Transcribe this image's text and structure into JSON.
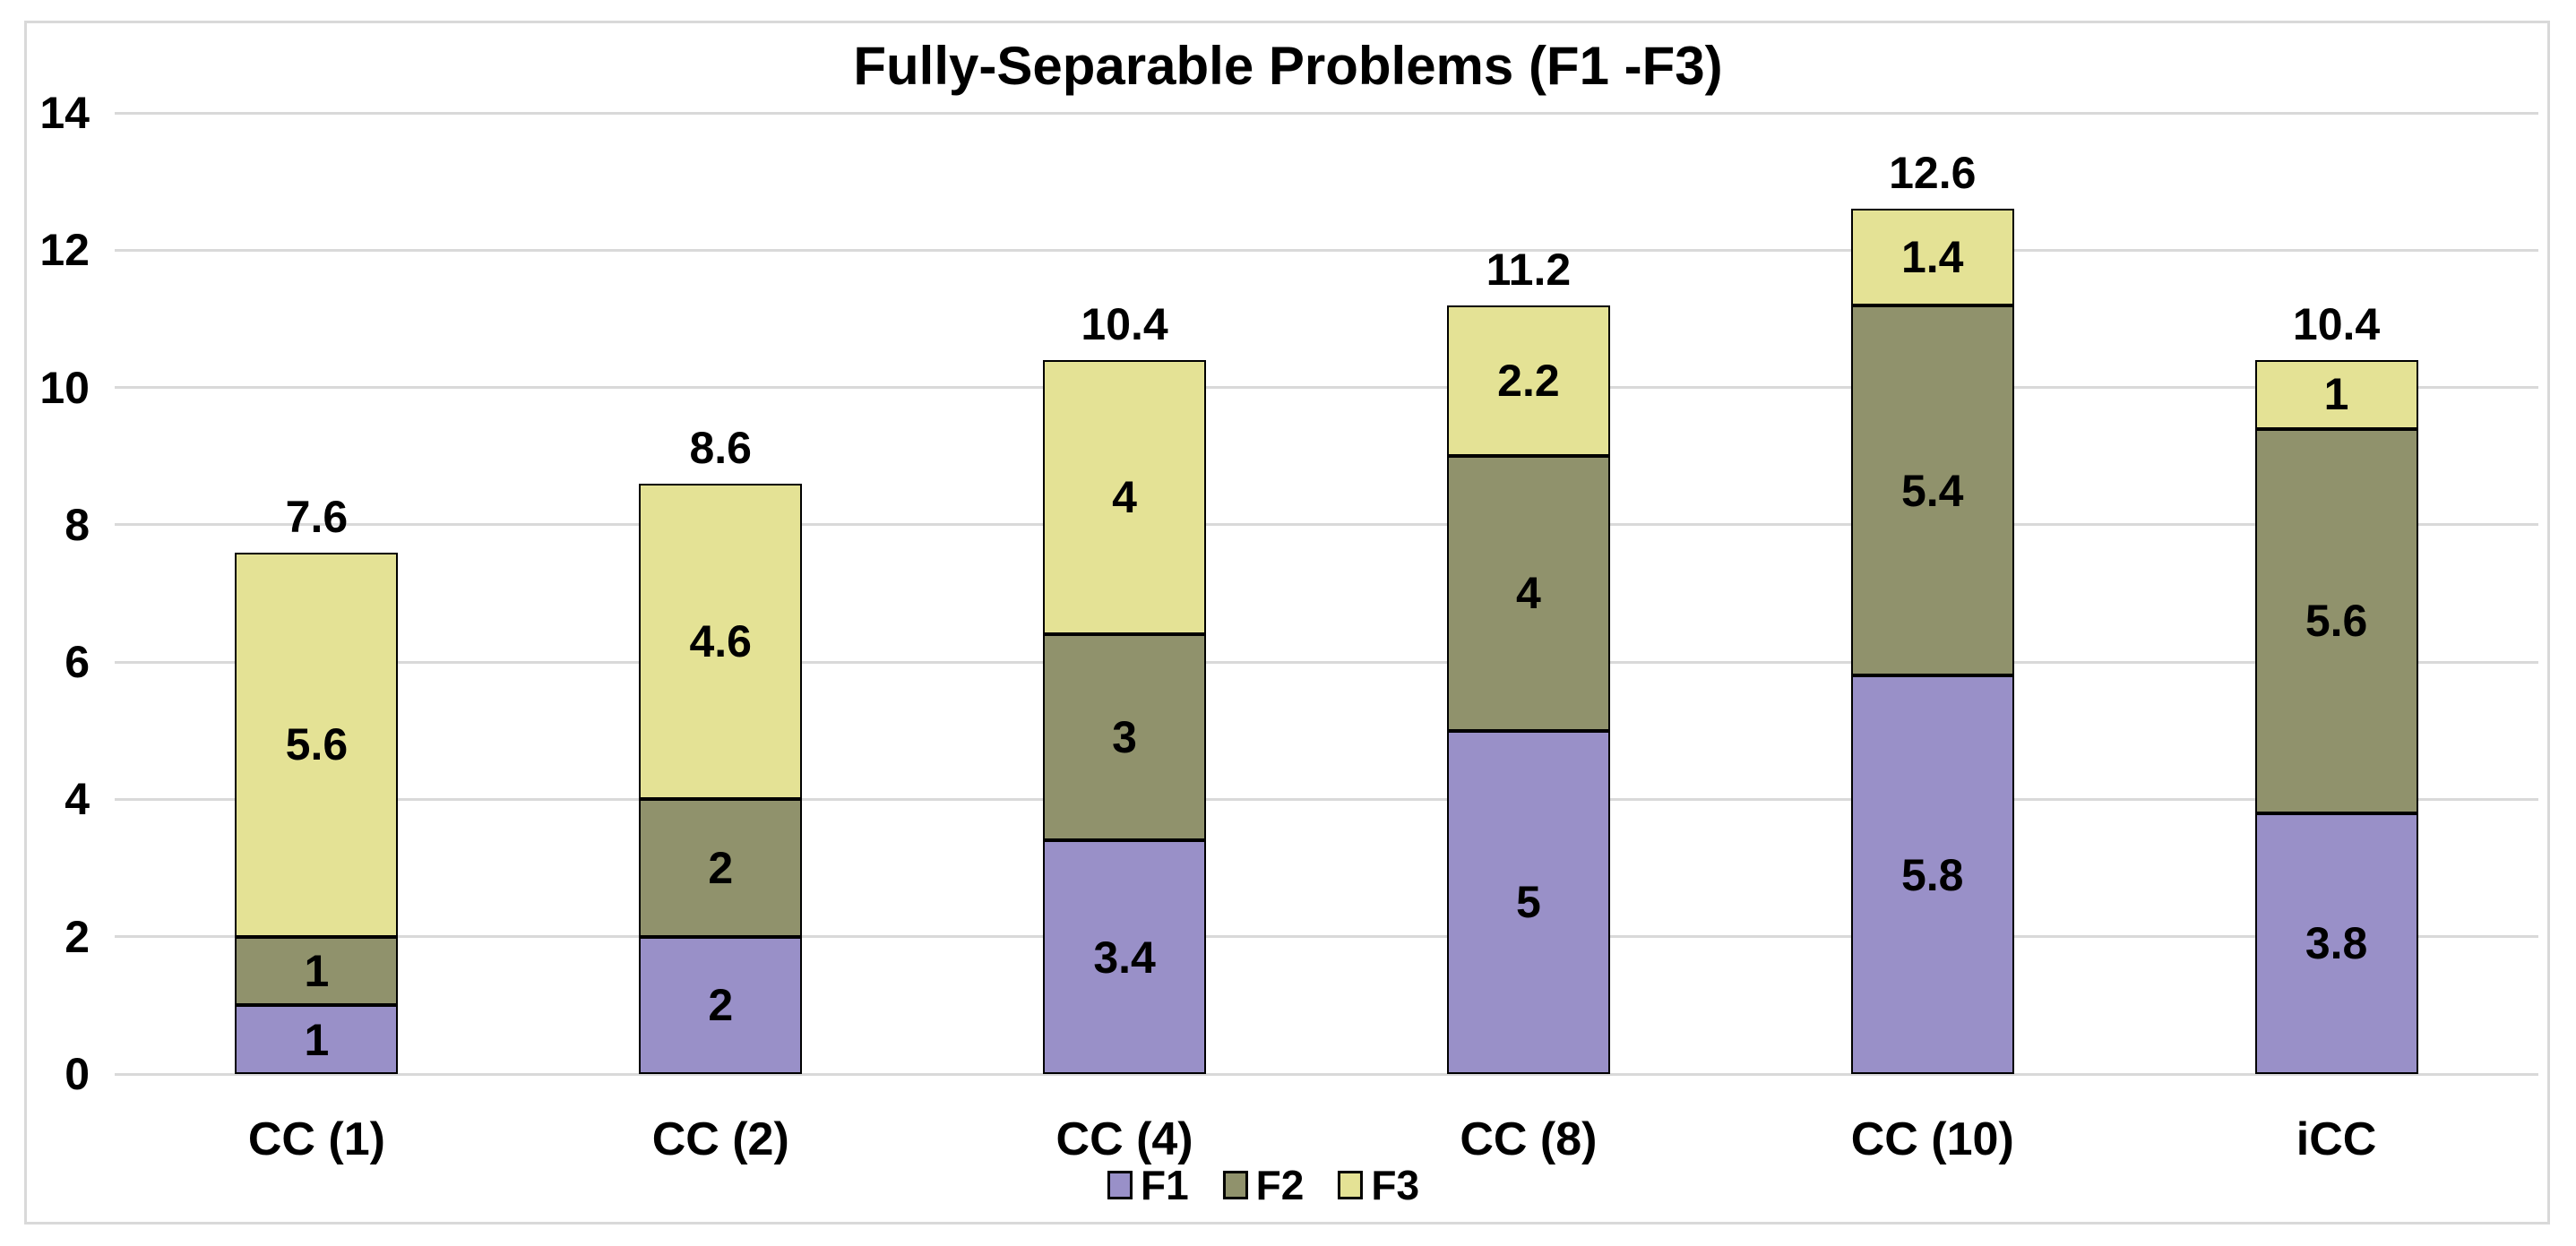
{
  "chart_data": {
    "type": "bar",
    "stacked": true,
    "title": "Fully-Separable Problems (F1 -F3)",
    "categories": [
      "CC (1)",
      "CC (2)",
      "CC (4)",
      "CC (8)",
      "CC (10)",
      "iCC"
    ],
    "series": [
      {
        "name": "F1",
        "color": "#9990C8",
        "values": [
          1,
          2,
          3.4,
          5,
          5.8,
          3.8
        ]
      },
      {
        "name": "F2",
        "color": "#90926C",
        "values": [
          1,
          2,
          3,
          4,
          5.4,
          5.6
        ]
      },
      {
        "name": "F3",
        "color": "#E4E295",
        "values": [
          5.6,
          4.6,
          4,
          2.2,
          1.4,
          1
        ]
      }
    ],
    "totals": [
      7.6,
      8.6,
      10.4,
      11.2,
      12.6,
      10.4
    ],
    "xlabel": "",
    "ylabel": "",
    "ylim": [
      0,
      14
    ],
    "yticks": [
      0,
      2,
      4,
      6,
      8,
      10,
      12,
      14
    ],
    "grid": true,
    "legend_position": "bottom-center",
    "legend_labels": [
      "F1",
      "F2",
      "F3"
    ],
    "colors": {
      "gridline": "#D9D9D9",
      "frame_border": "#D9D9D9",
      "bar_border": "#000000",
      "text": "#000000",
      "background": "#FFFFFF"
    }
  }
}
